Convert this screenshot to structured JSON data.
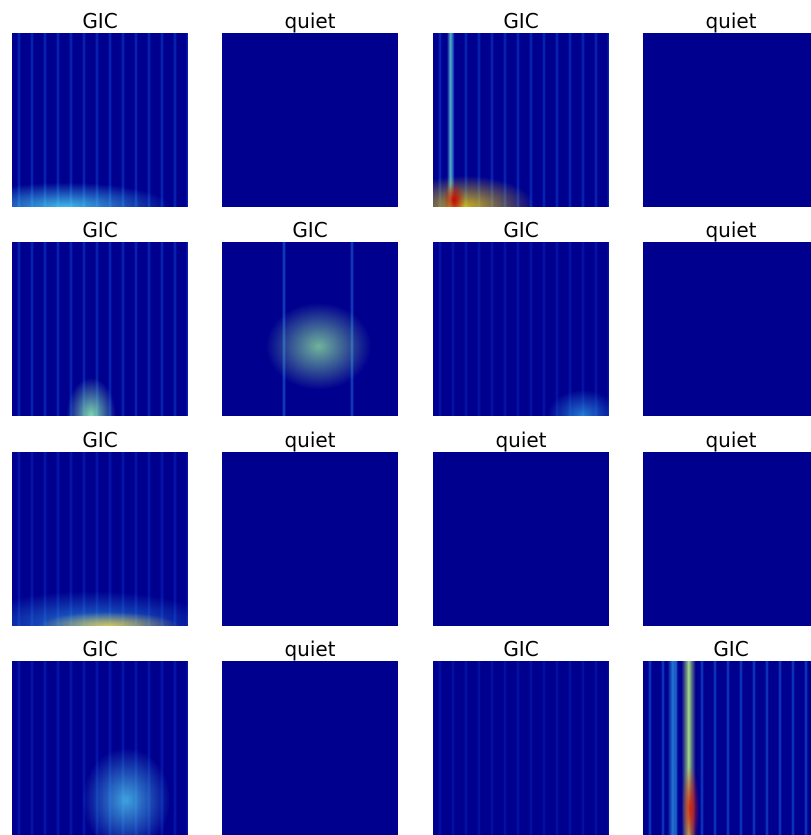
{
  "panels": [
    {
      "title": "GIC"
    },
    {
      "title": "quiet"
    },
    {
      "title": "GIC"
    },
    {
      "title": "quiet"
    },
    {
      "title": "GIC"
    },
    {
      "title": "GIC"
    },
    {
      "title": "GIC"
    },
    {
      "title": "quiet"
    },
    {
      "title": "GIC"
    },
    {
      "title": "quiet"
    },
    {
      "title": "quiet"
    },
    {
      "title": "quiet"
    },
    {
      "title": "GIC"
    },
    {
      "title": "quiet"
    },
    {
      "title": "GIC"
    },
    {
      "title": "GIC"
    }
  ]
}
